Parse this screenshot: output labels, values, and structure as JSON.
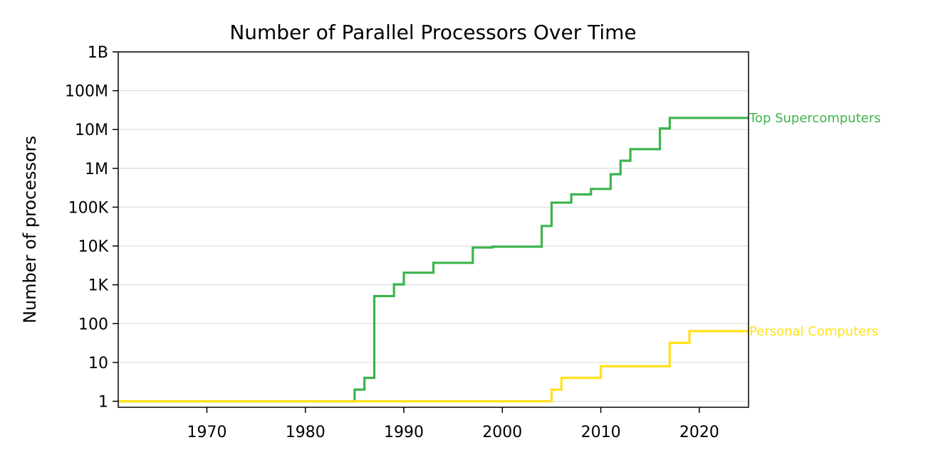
{
  "chart_data": {
    "type": "line",
    "title": "Number of Parallel Processors Over Time",
    "xlabel": "",
    "ylabel": "Number of processors",
    "xlim": [
      1961,
      2025
    ],
    "ylim": [
      0.7,
      1000000000
    ],
    "yscale": "log",
    "grid": "horizontal",
    "x_ticks": [
      1970,
      1980,
      1990,
      2000,
      2010,
      2020
    ],
    "x_tick_labels": [
      "1970",
      "1980",
      "1990",
      "2000",
      "2010",
      "2020"
    ],
    "y_ticks": [
      1,
      10,
      100,
      1000,
      10000,
      100000,
      1000000,
      10000000,
      100000000,
      1000000000
    ],
    "y_tick_labels": [
      "1",
      "10",
      "100",
      "1K",
      "10K",
      "100K",
      "1M",
      "10M",
      "100M",
      "1B"
    ],
    "step": "post",
    "series": [
      {
        "name": "Top Supercomputers",
        "color": "#3cb44b",
        "x": [
          1961,
          1985,
          1986,
          1987,
          1989,
          1990,
          1993,
          1997,
          1999,
          2004,
          2005,
          2007,
          2009,
          2011,
          2012,
          2013,
          2016,
          2017,
          2025
        ],
        "y": [
          1,
          2,
          4,
          512,
          1024,
          2048,
          3680,
          9152,
          9632,
          32768,
          131072,
          212992,
          294912,
          705024,
          1572864,
          3120000,
          10649600,
          19860000,
          19860000
        ]
      },
      {
        "name": "Personal Computers",
        "color": "#ffe119",
        "x": [
          1961,
          2005,
          2006,
          2010,
          2017,
          2019,
          2025
        ],
        "y": [
          1,
          2,
          4,
          8,
          32,
          64,
          64
        ]
      }
    ]
  }
}
